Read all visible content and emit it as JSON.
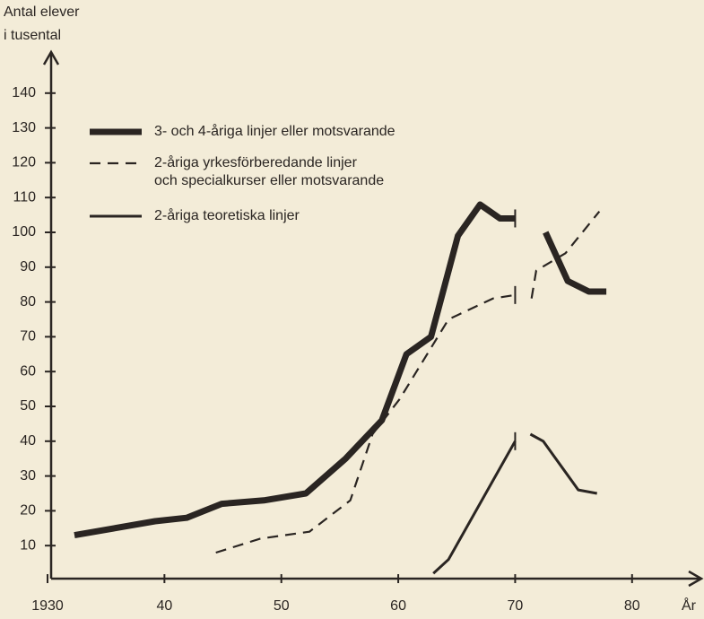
{
  "chart_data": {
    "type": "line",
    "y_label": [
      "Antal elever",
      "i tusental"
    ],
    "x_label": "År",
    "xlim": [
      1930,
      1986
    ],
    "xticks": [
      1930,
      {
        "value": 1940,
        "label": "40"
      },
      {
        "value": 1950,
        "label": "50"
      },
      {
        "value": 1960,
        "label": "60"
      },
      {
        "value": 1970,
        "label": "70"
      },
      {
        "value": 1980,
        "label": "80"
      }
    ],
    "ylim": [
      0,
      150
    ],
    "yticks": [
      10,
      20,
      30,
      40,
      50,
      60,
      70,
      80,
      90,
      100,
      110,
      120,
      130,
      140
    ],
    "series": [
      {
        "name": "3- och 4-åriga linjer eller motsvarande",
        "color": "#2a2522",
        "style": "thick",
        "x": [
          1932.3,
          1939.2,
          1941.9,
          1944.9,
          1948.5,
          1952.1,
          1955.5,
          1958.6,
          1960.7,
          1962.8,
          1965.1,
          1967.0,
          1968.7,
          1970.0,
          1971.0,
          1972.6,
          1974.5,
          1976.3,
          1977.8
        ],
        "values": [
          13,
          17,
          18,
          22,
          23,
          25,
          35,
          46,
          65,
          70,
          99,
          108,
          104,
          104,
          null,
          100,
          86,
          83,
          83
        ]
      },
      {
        "name": "2-åriga yrkesförberedande linjer\noch specialkurser eller motsvarande",
        "color": "#2a2522",
        "style": "dashed",
        "x": [
          1944.4,
          1948.2,
          1952.4,
          1955.9,
          1957.8,
          1960.1,
          1964.3,
          1968.1,
          1970.0,
          1971.0,
          1971.4,
          1971.8,
          1974.3,
          1976.0,
          1977.2
        ],
        "values": [
          8,
          12,
          14,
          23,
          42,
          52,
          75,
          81,
          82,
          null,
          81,
          89,
          94,
          101,
          106
        ]
      },
      {
        "name": "2-åriga teoretiska linjer",
        "color": "#2a2522",
        "style": "thin",
        "x": [
          1963.0,
          1964.3,
          1970.0,
          1971.0,
          1971.3,
          1972.4,
          1975.4,
          1977.0
        ],
        "values": [
          2,
          6,
          40,
          null,
          42,
          40,
          26,
          25
        ]
      }
    ]
  }
}
